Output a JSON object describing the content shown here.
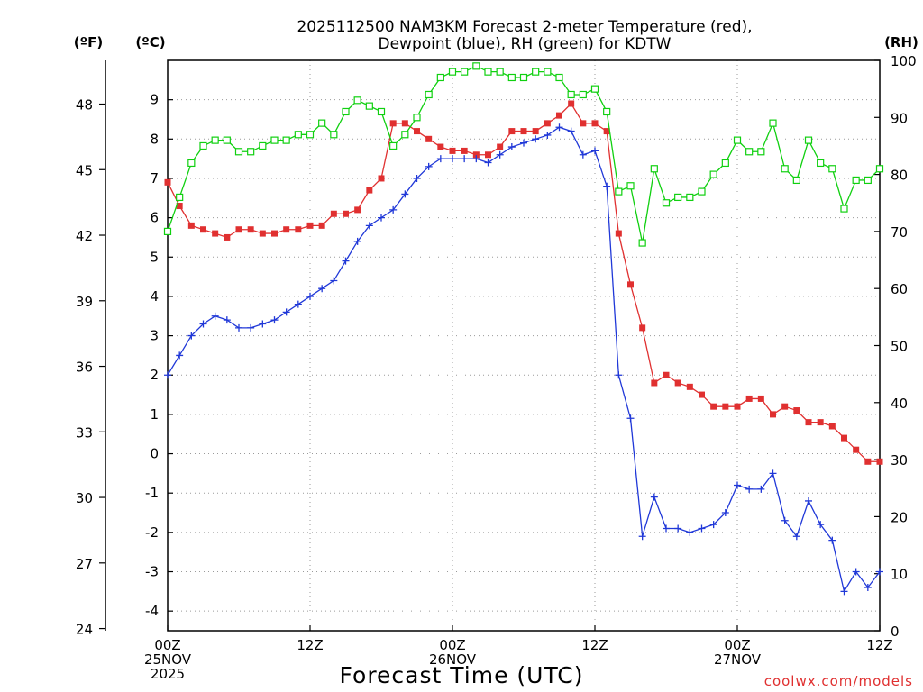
{
  "chart_data": {
    "type": "line",
    "title_line1": "2025112500 NAM3KM Forecast 2-meter Temperature (red),",
    "title_line2": "Dewpoint (blue), RH (green) for KDTW",
    "units": {
      "fahrenheit": "(ºF)",
      "celsius": "(ºC)",
      "rh": "(RH)"
    },
    "xlabel": "Forecast Time (UTC)",
    "credit": "coolwx.com/models",
    "x_range_hours": [
      0,
      60
    ],
    "celsius_range": [
      -4.5,
      10
    ],
    "rh_range": [
      0,
      100
    ],
    "celsius_ticks": [
      "9",
      "8",
      "7",
      "6",
      "5",
      "4",
      "3",
      "2",
      "1",
      "0",
      "-1",
      "-2",
      "-3",
      "-4"
    ],
    "fahrenheit_ticks": [
      "48",
      "45",
      "42",
      "39",
      "36",
      "33",
      "30",
      "27",
      "24"
    ],
    "rh_ticks": [
      "100",
      "90",
      "80",
      "70",
      "60",
      "50",
      "40",
      "30",
      "20",
      "10",
      "0"
    ],
    "x_ticks": [
      {
        "hour": 0,
        "lines": [
          "00Z",
          "25NOV",
          "2025"
        ]
      },
      {
        "hour": 12,
        "lines": [
          "12Z"
        ]
      },
      {
        "hour": 24,
        "lines": [
          "00Z",
          "26NOV"
        ]
      },
      {
        "hour": 36,
        "lines": [
          "12Z"
        ]
      },
      {
        "hour": 48,
        "lines": [
          "00Z",
          "27NOV"
        ]
      },
      {
        "hour": 60,
        "lines": [
          "12Z"
        ]
      }
    ],
    "series": [
      {
        "name": "2-meter Temperature",
        "axis": "celsius",
        "color": "#e03030",
        "marker": "filled-square",
        "values": [
          6.9,
          6.3,
          5.8,
          5.7,
          5.6,
          5.5,
          5.7,
          5.7,
          5.6,
          5.6,
          5.7,
          5.7,
          5.8,
          5.8,
          6.1,
          6.1,
          6.2,
          6.7,
          7.0,
          8.4,
          8.4,
          8.2,
          8.0,
          7.8,
          7.7,
          7.7,
          7.6,
          7.6,
          7.8,
          8.2,
          8.2,
          8.2,
          8.4,
          8.6,
          8.9,
          8.4,
          8.4,
          8.2,
          5.6,
          4.3,
          3.2,
          1.8,
          2.0,
          1.8,
          1.7,
          1.5,
          1.2,
          1.2,
          1.2,
          1.4,
          1.4,
          1.0,
          1.2,
          1.1,
          0.8,
          0.8,
          0.7,
          0.4,
          0.1,
          -0.2,
          -0.2
        ]
      },
      {
        "name": "Dewpoint",
        "axis": "celsius",
        "color": "#2038d8",
        "marker": "plus",
        "values": [
          2.0,
          2.5,
          3.0,
          3.3,
          3.5,
          3.4,
          3.2,
          3.2,
          3.3,
          3.4,
          3.6,
          3.8,
          4.0,
          4.2,
          4.4,
          4.9,
          5.4,
          5.8,
          6.0,
          6.2,
          6.6,
          7.0,
          7.3,
          7.5,
          7.5,
          7.5,
          7.5,
          7.4,
          7.6,
          7.8,
          7.9,
          8.0,
          8.1,
          8.3,
          8.2,
          7.6,
          7.7,
          6.8,
          2.0,
          0.9,
          -2.1,
          -1.1,
          -1.9,
          -1.9,
          -2.0,
          -1.9,
          -1.8,
          -1.5,
          -0.8,
          -0.9,
          -0.9,
          -0.5,
          -1.7,
          -2.1,
          -1.2,
          -1.8,
          -2.2,
          -3.5,
          -3.0,
          -3.4,
          -3.0
        ]
      },
      {
        "name": "RH",
        "axis": "rh",
        "color": "#10d010",
        "marker": "open-square",
        "values": [
          70,
          76,
          82,
          85,
          86,
          86,
          84,
          84,
          85,
          86,
          86,
          87,
          87,
          89,
          87,
          91,
          93,
          92,
          91,
          85,
          87,
          90,
          94,
          97,
          98,
          98,
          99,
          98,
          98,
          97,
          97,
          98,
          98,
          97,
          94,
          94,
          95,
          91,
          77,
          78,
          68,
          81,
          75,
          76,
          76,
          77,
          80,
          82,
          86,
          84,
          84,
          89,
          81,
          79,
          86,
          82,
          81,
          74,
          79,
          79,
          81
        ]
      }
    ]
  }
}
